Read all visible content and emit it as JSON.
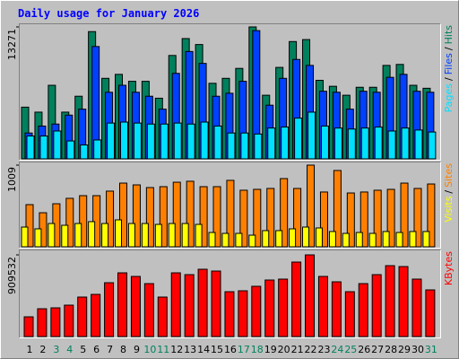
{
  "chart_data": {
    "type": "bar",
    "title": "Daily usage for January 2026",
    "separator": "/",
    "categories": [
      "1",
      "2",
      "3",
      "4",
      "5",
      "6",
      "7",
      "8",
      "9",
      "10",
      "11",
      "12",
      "13",
      "14",
      "15",
      "16",
      "17",
      "18",
      "19",
      "20",
      "21",
      "22",
      "23",
      "24",
      "25",
      "26",
      "27",
      "28",
      "29",
      "30",
      "31"
    ],
    "category_colors": [
      "#000000",
      "#000000",
      "#00805c",
      "#00805c",
      "#000000",
      "#000000",
      "#000000",
      "#000000",
      "#000000",
      "#00805c",
      "#00805c",
      "#000000",
      "#000000",
      "#000000",
      "#000000",
      "#000000",
      "#00805c",
      "#00805c",
      "#000000",
      "#000000",
      "#000000",
      "#000000",
      "#000000",
      "#00805c",
      "#00805c",
      "#000000",
      "#000000",
      "#000000",
      "#000000",
      "#000000",
      "#00805c"
    ],
    "panels": [
      {
        "ylim": [
          0,
          13271
        ],
        "yticks": [
          13271
        ],
        "series": [
          {
            "name": "Hits",
            "color": "#00805c",
            "values": [
              5200,
              4700,
              7400,
              4700,
              6300,
              12800,
              8100,
              8500,
              7800,
              7800,
              6100,
              10400,
              12100,
              11500,
              7600,
              8100,
              9100,
              13271,
              6400,
              9200,
              11800,
              12000,
              7900,
              7300,
              6400,
              7200,
              7200,
              9400,
              9500,
              7400,
              7100
            ]
          },
          {
            "name": "Files",
            "color": "#0040ff",
            "values": [
              2600,
              3300,
              3500,
              4400,
              5000,
              11300,
              6700,
              7400,
              6700,
              6300,
              5000,
              8600,
              10800,
              9600,
              6300,
              6600,
              7800,
              12900,
              5400,
              8100,
              10000,
              9400,
              6800,
              6700,
              5000,
              6800,
              6700,
              8200,
              8500,
              6800,
              6700
            ]
          },
          {
            "name": "Pages",
            "color": "#00e0ff",
            "values": [
              2300,
              2300,
              2800,
              1800,
              1400,
              1900,
              3600,
              3700,
              3600,
              3500,
              3500,
              3600,
              3500,
              3700,
              3300,
              2600,
              2600,
              2500,
              3100,
              3200,
              4100,
              4700,
              3300,
              3100,
              3000,
              3100,
              3200,
              2800,
              3100,
              2900,
              2700
            ]
          }
        ]
      },
      {
        "ylim": [
          0,
          1009
        ],
        "yticks": [
          1009
        ],
        "series": [
          {
            "name": "Sites",
            "color": "#ff8000",
            "values": [
              521,
              421,
              532,
              599,
              632,
              632,
              688,
              787,
              765,
              732,
              743,
              798,
              810,
              743,
              743,
              821,
              699,
              710,
              721,
              843,
              721,
              1009,
              677,
              943,
              665,
              677,
              699,
              710,
              787,
              721,
              776
            ]
          },
          {
            "name": "Visits",
            "color": "#ffff00",
            "values": [
              244,
              222,
              288,
              266,
              288,
              311,
              288,
              333,
              288,
              288,
              277,
              288,
              288,
              277,
              177,
              166,
              166,
              144,
              200,
              200,
              222,
              244,
              233,
              189,
              166,
              177,
              166,
              189,
              177,
              189,
              189
            ]
          }
        ]
      },
      {
        "ylim": [
          0,
          909532
        ],
        "yticks": [
          909532
        ],
        "series": [
          {
            "name": "KBytes",
            "color": "#ff0000",
            "values": [
              219890,
              309845,
              319840,
              349825,
              439780,
              469765,
              599700,
              709645,
              669665,
              589705,
              439780,
              709645,
              689655,
              749625,
              729635,
              499750,
              509745,
              559720,
              629685,
              639680,
              829585,
              909532,
              669665,
              609695,
              499750,
              589705,
              689655,
              789605,
              779610,
              639680,
              519740
            ]
          }
        ]
      }
    ]
  }
}
